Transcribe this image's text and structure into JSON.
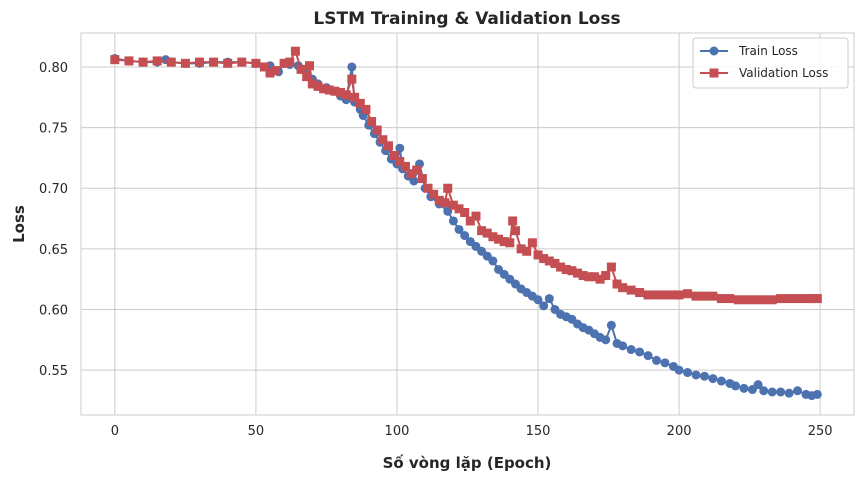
{
  "chart_data": {
    "type": "line",
    "title": "LSTM Training & Validation Loss",
    "xlabel": "Số vòng lặp (Epoch)",
    "ylabel": "Loss",
    "xlim": [
      -12,
      262
    ],
    "ylim": [
      0.513,
      0.828
    ],
    "xticks": [
      0,
      50,
      100,
      150,
      200,
      250
    ],
    "yticks": [
      0.55,
      0.6,
      0.65,
      0.7,
      0.75,
      0.8
    ],
    "ytick_labels": [
      "0.55",
      "0.60",
      "0.65",
      "0.70",
      "0.75",
      "0.80"
    ],
    "grid": true,
    "legend_position": "top-right",
    "series": [
      {
        "name": "Train Loss",
        "color": "#4c72b0",
        "marker": "circle",
        "points": [
          [
            0,
            0.807
          ],
          [
            5,
            0.805
          ],
          [
            10,
            0.804
          ],
          [
            15,
            0.804
          ],
          [
            18,
            0.806
          ],
          [
            20,
            0.804
          ],
          [
            25,
            0.803
          ],
          [
            30,
            0.803
          ],
          [
            35,
            0.804
          ],
          [
            40,
            0.804
          ],
          [
            45,
            0.804
          ],
          [
            50,
            0.803
          ],
          [
            55,
            0.801
          ],
          [
            58,
            0.796
          ],
          [
            60,
            0.803
          ],
          [
            62,
            0.802
          ],
          [
            65,
            0.801
          ],
          [
            68,
            0.797
          ],
          [
            70,
            0.79
          ],
          [
            72,
            0.786
          ],
          [
            75,
            0.783
          ],
          [
            78,
            0.78
          ],
          [
            80,
            0.776
          ],
          [
            82,
            0.773
          ],
          [
            84,
            0.8
          ],
          [
            85,
            0.771
          ],
          [
            87,
            0.765
          ],
          [
            88,
            0.76
          ],
          [
            90,
            0.752
          ],
          [
            92,
            0.745
          ],
          [
            94,
            0.738
          ],
          [
            96,
            0.731
          ],
          [
            98,
            0.724
          ],
          [
            100,
            0.72
          ],
          [
            101,
            0.733
          ],
          [
            102,
            0.716
          ],
          [
            104,
            0.71
          ],
          [
            106,
            0.706
          ],
          [
            108,
            0.72
          ],
          [
            110,
            0.7
          ],
          [
            112,
            0.693
          ],
          [
            115,
            0.687
          ],
          [
            118,
            0.681
          ],
          [
            120,
            0.673
          ],
          [
            122,
            0.666
          ],
          [
            124,
            0.661
          ],
          [
            126,
            0.656
          ],
          [
            128,
            0.652
          ],
          [
            130,
            0.648
          ],
          [
            132,
            0.644
          ],
          [
            134,
            0.64
          ],
          [
            136,
            0.633
          ],
          [
            138,
            0.629
          ],
          [
            140,
            0.625
          ],
          [
            142,
            0.621
          ],
          [
            144,
            0.617
          ],
          [
            146,
            0.614
          ],
          [
            148,
            0.611
          ],
          [
            150,
            0.608
          ],
          [
            152,
            0.603
          ],
          [
            154,
            0.609
          ],
          [
            156,
            0.6
          ],
          [
            158,
            0.596
          ],
          [
            160,
            0.594
          ],
          [
            162,
            0.592
          ],
          [
            164,
            0.588
          ],
          [
            166,
            0.585
          ],
          [
            168,
            0.583
          ],
          [
            170,
            0.58
          ],
          [
            172,
            0.577
          ],
          [
            174,
            0.575
          ],
          [
            176,
            0.587
          ],
          [
            178,
            0.572
          ],
          [
            180,
            0.57
          ],
          [
            183,
            0.567
          ],
          [
            186,
            0.565
          ],
          [
            189,
            0.562
          ],
          [
            192,
            0.558
          ],
          [
            195,
            0.556
          ],
          [
            198,
            0.553
          ],
          [
            200,
            0.55
          ],
          [
            203,
            0.548
          ],
          [
            206,
            0.546
          ],
          [
            209,
            0.545
          ],
          [
            212,
            0.543
          ],
          [
            215,
            0.541
          ],
          [
            218,
            0.539
          ],
          [
            220,
            0.537
          ],
          [
            223,
            0.535
          ],
          [
            226,
            0.534
          ],
          [
            228,
            0.538
          ],
          [
            230,
            0.533
          ],
          [
            233,
            0.532
          ],
          [
            236,
            0.532
          ],
          [
            239,
            0.531
          ],
          [
            242,
            0.533
          ],
          [
            245,
            0.53
          ],
          [
            247,
            0.529
          ],
          [
            249,
            0.53
          ]
        ]
      },
      {
        "name": "Validation Loss",
        "color": "#c44e52",
        "marker": "square",
        "points": [
          [
            0,
            0.806
          ],
          [
            5,
            0.805
          ],
          [
            10,
            0.804
          ],
          [
            15,
            0.805
          ],
          [
            20,
            0.804
          ],
          [
            25,
            0.803
          ],
          [
            30,
            0.804
          ],
          [
            35,
            0.804
          ],
          [
            40,
            0.803
          ],
          [
            45,
            0.804
          ],
          [
            50,
            0.803
          ],
          [
            53,
            0.8
          ],
          [
            55,
            0.795
          ],
          [
            57,
            0.797
          ],
          [
            60,
            0.803
          ],
          [
            62,
            0.804
          ],
          [
            64,
            0.813
          ],
          [
            66,
            0.798
          ],
          [
            68,
            0.792
          ],
          [
            69,
            0.801
          ],
          [
            70,
            0.786
          ],
          [
            72,
            0.784
          ],
          [
            74,
            0.782
          ],
          [
            76,
            0.781
          ],
          [
            78,
            0.78
          ],
          [
            80,
            0.779
          ],
          [
            82,
            0.777
          ],
          [
            84,
            0.79
          ],
          [
            85,
            0.775
          ],
          [
            87,
            0.77
          ],
          [
            89,
            0.765
          ],
          [
            91,
            0.755
          ],
          [
            93,
            0.748
          ],
          [
            95,
            0.74
          ],
          [
            97,
            0.735
          ],
          [
            99,
            0.727
          ],
          [
            101,
            0.722
          ],
          [
            103,
            0.718
          ],
          [
            105,
            0.712
          ],
          [
            107,
            0.715
          ],
          [
            109,
            0.708
          ],
          [
            111,
            0.7
          ],
          [
            113,
            0.695
          ],
          [
            115,
            0.69
          ],
          [
            117,
            0.688
          ],
          [
            118,
            0.7
          ],
          [
            120,
            0.686
          ],
          [
            122,
            0.683
          ],
          [
            124,
            0.68
          ],
          [
            126,
            0.673
          ],
          [
            128,
            0.677
          ],
          [
            130,
            0.665
          ],
          [
            132,
            0.663
          ],
          [
            134,
            0.66
          ],
          [
            136,
            0.658
          ],
          [
            138,
            0.656
          ],
          [
            140,
            0.655
          ],
          [
            141,
            0.673
          ],
          [
            142,
            0.665
          ],
          [
            144,
            0.65
          ],
          [
            146,
            0.648
          ],
          [
            148,
            0.655
          ],
          [
            150,
            0.645
          ],
          [
            152,
            0.642
          ],
          [
            154,
            0.64
          ],
          [
            156,
            0.638
          ],
          [
            158,
            0.635
          ],
          [
            160,
            0.633
          ],
          [
            162,
            0.632
          ],
          [
            164,
            0.63
          ],
          [
            166,
            0.628
          ],
          [
            168,
            0.627
          ],
          [
            170,
            0.627
          ],
          [
            172,
            0.625
          ],
          [
            174,
            0.628
          ],
          [
            176,
            0.635
          ],
          [
            178,
            0.621
          ],
          [
            180,
            0.618
          ],
          [
            183,
            0.616
          ],
          [
            186,
            0.614
          ],
          [
            189,
            0.612
          ],
          [
            192,
            0.612
          ],
          [
            195,
            0.612
          ],
          [
            198,
            0.612
          ],
          [
            200,
            0.612
          ],
          [
            203,
            0.613
          ],
          [
            206,
            0.611
          ],
          [
            209,
            0.611
          ],
          [
            212,
            0.611
          ],
          [
            215,
            0.609
          ],
          [
            218,
            0.609
          ],
          [
            221,
            0.608
          ],
          [
            224,
            0.608
          ],
          [
            227,
            0.608
          ],
          [
            230,
            0.608
          ],
          [
            233,
            0.608
          ],
          [
            236,
            0.609
          ],
          [
            239,
            0.609
          ],
          [
            242,
            0.609
          ],
          [
            245,
            0.609
          ],
          [
            247,
            0.609
          ],
          [
            249,
            0.609
          ]
        ]
      }
    ]
  }
}
